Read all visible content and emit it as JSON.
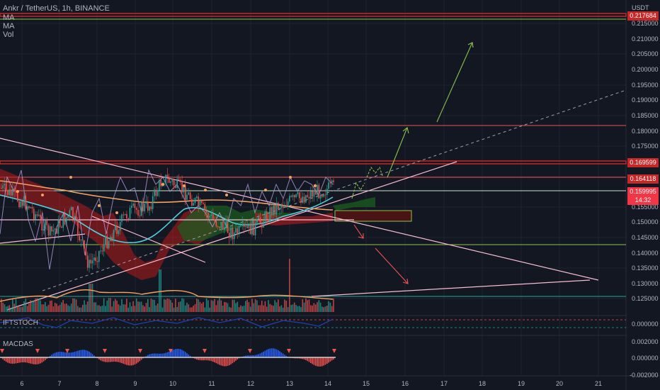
{
  "header": {
    "symbol_line": "Ankr / TetherUS, 1h, BINANCE",
    "indicators": [
      "MA",
      "MA",
      "Vol"
    ]
  },
  "price_axis": {
    "currency": "USDT",
    "ticks": [
      "0.215000",
      "0.210000",
      "0.205000",
      "0.200000",
      "0.195000",
      "0.190000",
      "0.185000",
      "0.180000",
      "0.175000",
      "0.170000",
      "0.155000",
      "0.150000",
      "0.145000",
      "0.140000",
      "0.135000",
      "0.130000",
      "0.125000"
    ],
    "tags": [
      {
        "text": "0.217684",
        "color": "#c62828"
      },
      {
        "text": "0.169599",
        "color": "#c62828"
      },
      {
        "text": "0.164118",
        "color": "#c62828"
      },
      {
        "text": "0.159995",
        "color": "#f23645"
      },
      {
        "text": "14:32",
        "color": "#f23645"
      }
    ]
  },
  "panes": {
    "iftstoch": {
      "title": "IFTSTOCH",
      "tick": "0.000000"
    },
    "macdas": {
      "title": "MACDAS",
      "ticks": [
        "0.002000",
        "0.000000",
        "-0.002000"
      ]
    }
  },
  "time_axis": {
    "labels": [
      "6",
      "7",
      "8",
      "9",
      "10",
      "11",
      "12",
      "13",
      "14",
      "15",
      "16",
      "17",
      "18",
      "19",
      "20",
      "21"
    ]
  },
  "colors": {
    "background": "#131722",
    "up": "#26a69a",
    "down": "#ef5350",
    "resistance": "#c62828",
    "support": "#8bc34a",
    "trend": "#f8bbd0"
  }
}
